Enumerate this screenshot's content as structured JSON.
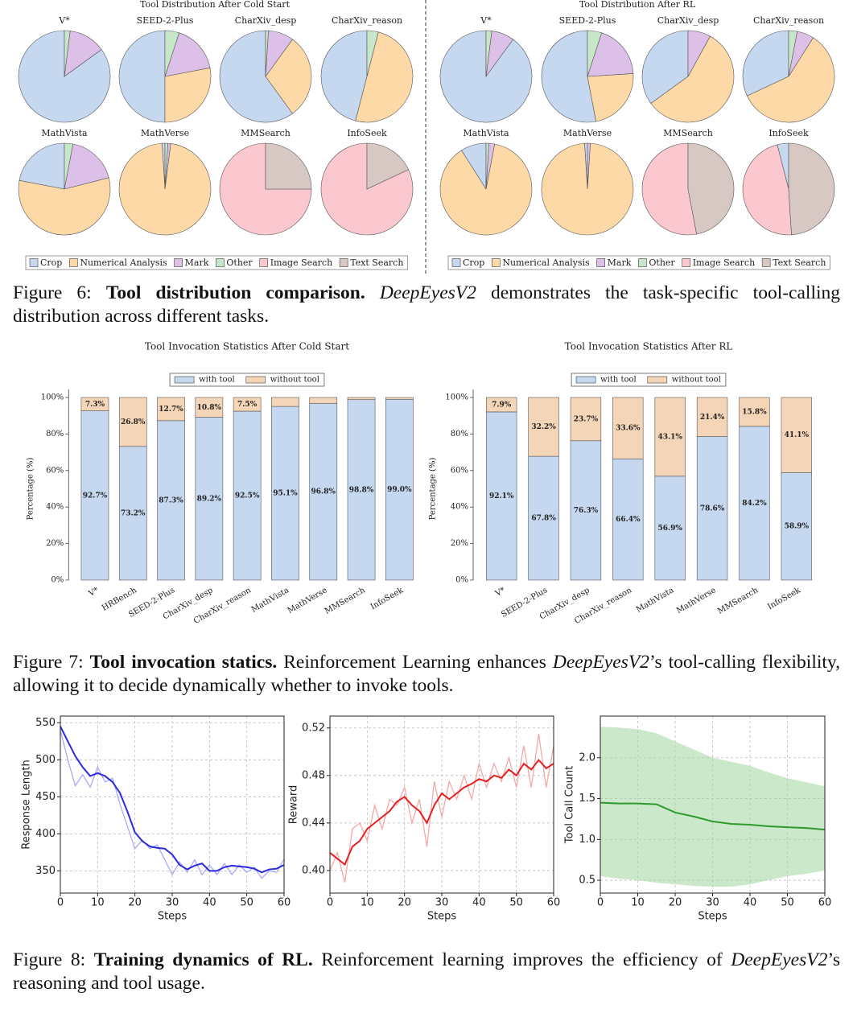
{
  "captions": [
    [
      {
        "text": "Figure 6: ",
        "style": "normal"
      },
      {
        "text": "Tool distribution comparison.",
        "style": "bold"
      },
      {
        "text": " DeepEyesV2",
        "style": "italic"
      },
      {
        "text": " demonstrates the task-specific tool-calling distribution across different tasks.",
        "style": "normal"
      }
    ],
    [
      {
        "text": "Figure 7: ",
        "style": "normal"
      },
      {
        "text": "Tool invocation statics.",
        "style": "bold"
      },
      {
        "text": " Reinforcement Learning enhances ",
        "style": "normal"
      },
      {
        "text": "DeepEyesV2",
        "style": "italic"
      },
      {
        "text": "’s tool-calling flexibility, allowing it to decide dynamically whether to invoke tools.",
        "style": "normal"
      }
    ],
    [
      {
        "text": "Figure 8: ",
        "style": "normal"
      },
      {
        "text": "Training dynamics of RL.",
        "style": "bold"
      },
      {
        "text": " Reinforcement learning improves the efficiency of ",
        "style": "normal"
      },
      {
        "text": "DeepEyesV2",
        "style": "italic"
      },
      {
        "text": "’s reasoning and tool usage.",
        "style": "normal"
      }
    ]
  ],
  "chart_data": [
    {
      "type": "pie_grid",
      "title": "Tool Distribution After Cold Start",
      "legend": [
        "Crop",
        "Numerical Analysis",
        "Mark",
        "Other",
        "Image Search",
        "Text Search"
      ],
      "colors": [
        "#c5d8f0",
        "#fdd9a8",
        "#dcc0e8",
        "#c8e6c9",
        "#fbc8d0",
        "#d8c8c4"
      ],
      "subplots": [
        {
          "title": "V*",
          "values": [
            85,
            0,
            13,
            2,
            0,
            0
          ]
        },
        {
          "title": "SEED-2-Plus",
          "values": [
            50,
            28,
            17,
            5,
            0,
            0
          ]
        },
        {
          "title": "CharXiv_desp",
          "values": [
            60,
            30,
            9,
            1,
            0,
            0
          ]
        },
        {
          "title": "CharXiv_reason",
          "values": [
            46,
            50,
            0,
            4,
            0,
            0
          ]
        },
        {
          "title": "MathVista",
          "values": [
            22,
            57,
            18,
            3,
            0,
            0
          ]
        },
        {
          "title": "MathVerse",
          "values": [
            1,
            97,
            1,
            1,
            0,
            0
          ]
        },
        {
          "title": "MMSearch",
          "values": [
            0,
            0,
            0,
            0,
            75,
            25
          ]
        },
        {
          "title": "InfoSeek",
          "values": [
            0,
            0,
            0,
            0,
            82,
            18
          ]
        }
      ]
    },
    {
      "type": "pie_grid",
      "title": "Tool Distribution After RL",
      "legend": [
        "Crop",
        "Numerical Analysis",
        "Mark",
        "Other",
        "Image Search",
        "Text Search"
      ],
      "colors": [
        "#c5d8f0",
        "#fdd9a8",
        "#dcc0e8",
        "#c8e6c9",
        "#fbc8d0",
        "#d8c8c4"
      ],
      "subplots": [
        {
          "title": "V*",
          "values": [
            90,
            0,
            8,
            2,
            0,
            0
          ]
        },
        {
          "title": "SEED-2-Plus",
          "values": [
            53,
            23,
            19,
            5,
            0,
            0
          ]
        },
        {
          "title": "CharXiv_desp",
          "values": [
            35,
            57,
            8,
            0,
            0,
            0
          ]
        },
        {
          "title": "CharXiv_reason",
          "values": [
            32,
            59,
            6,
            3,
            0,
            0
          ]
        },
        {
          "title": "MathVista",
          "values": [
            9,
            88,
            2,
            1,
            0,
            0
          ]
        },
        {
          "title": "MathVerse",
          "values": [
            1,
            98,
            1,
            0,
            0,
            0
          ]
        },
        {
          "title": "MMSearch",
          "values": [
            0,
            0,
            0,
            0,
            53,
            47
          ]
        },
        {
          "title": "InfoSeek",
          "values": [
            4,
            0,
            0,
            0,
            47,
            49
          ]
        }
      ]
    },
    {
      "type": "stacked_bar",
      "title": "Tool Invocation Statistics After Cold Start",
      "ylabel": "Percentage (%)",
      "categories": [
        "V*",
        "HRBench",
        "SEED-2-Plus",
        "CharXiv_desp",
        "CharXiv_reason",
        "MathVista",
        "MathVerse",
        "MMSearch",
        "InfoSeek"
      ],
      "series": [
        {
          "name": "with tool",
          "color": "#c5d8f0",
          "values": [
            92.7,
            73.2,
            87.3,
            89.2,
            92.5,
            95.1,
            96.8,
            98.8,
            99.0
          ],
          "value_labels": [
            "92.7%",
            "73.2%",
            "87.3%",
            "89.2%",
            "92.5%",
            "95.1%",
            "96.8%",
            "98.8%",
            "99.0%"
          ]
        },
        {
          "name": "without tool",
          "color": "#f5d5b8",
          "values": [
            7.3,
            26.8,
            12.7,
            10.8,
            7.5,
            4.9,
            3.2,
            1.2,
            1.0
          ],
          "value_labels": [
            "7.3%",
            "26.8%",
            "12.7%",
            "10.8%",
            "7.5%",
            null,
            null,
            null,
            null
          ]
        }
      ],
      "ylim": [
        0,
        100
      ],
      "yticks": [
        {
          "value": 0,
          "label": "0%"
        },
        {
          "value": 20,
          "label": "20%"
        },
        {
          "value": 40,
          "label": "40%"
        },
        {
          "value": 60,
          "label": "60%"
        },
        {
          "value": 80,
          "label": "80%"
        },
        {
          "value": 100,
          "label": "100%"
        }
      ],
      "legend_position": "upper center"
    },
    {
      "type": "stacked_bar",
      "title": "Tool Invocation Statistics After RL",
      "ylabel": "Percentage (%)",
      "categories": [
        "V*",
        "SEED-2-Plus",
        "CharXiv_desp",
        "CharXiv_reason",
        "MathVista",
        "MathVerse",
        "MMSearch",
        "InfoSeek"
      ],
      "series": [
        {
          "name": "with tool",
          "color": "#c5d8f0",
          "values": [
            92.1,
            67.8,
            76.3,
            66.4,
            56.9,
            78.6,
            84.2,
            58.9
          ],
          "value_labels": [
            "92.1%",
            "67.8%",
            "76.3%",
            "66.4%",
            "56.9%",
            "78.6%",
            "84.2%",
            "58.9%"
          ]
        },
        {
          "name": "without tool",
          "color": "#f5d5b8",
          "values": [
            7.9,
            32.2,
            23.7,
            33.6,
            43.1,
            21.4,
            15.8,
            41.1
          ],
          "value_labels": [
            "7.9%",
            "32.2%",
            "23.7%",
            "33.6%",
            "43.1%",
            "21.4%",
            "15.8%",
            "41.1%"
          ]
        }
      ],
      "ylim": [
        0,
        100
      ],
      "yticks": [
        {
          "value": 0,
          "label": "0%"
        },
        {
          "value": 20,
          "label": "20%"
        },
        {
          "value": 40,
          "label": "40%"
        },
        {
          "value": 60,
          "label": "60%"
        },
        {
          "value": 80,
          "label": "80%"
        },
        {
          "value": 100,
          "label": "100%"
        }
      ],
      "legend_position": "upper center"
    },
    {
      "type": "line",
      "xlabel": "Steps",
      "ylabel": "Response Length",
      "x": [
        0,
        2,
        4,
        6,
        8,
        10,
        12,
        14,
        16,
        18,
        20,
        22,
        24,
        26,
        28,
        30,
        32,
        34,
        36,
        38,
        40,
        42,
        44,
        46,
        48,
        50,
        52,
        54,
        56,
        58,
        60
      ],
      "series": [
        {
          "color": "#aaaaf2",
          "values": [
            540,
            500,
            465,
            480,
            463,
            490,
            470,
            475,
            440,
            410,
            380,
            392,
            380,
            385,
            365,
            345,
            362,
            348,
            365,
            345,
            358,
            345,
            360,
            345,
            358,
            348,
            355,
            340,
            350,
            348,
            366
          ]
        },
        {
          "color": "#2b2be0",
          "values": [
            545,
            525,
            505,
            490,
            478,
            482,
            478,
            470,
            455,
            430,
            402,
            390,
            383,
            381,
            380,
            372,
            358,
            352,
            357,
            360,
            350,
            350,
            355,
            357,
            356,
            355,
            353,
            348,
            352,
            353,
            358
          ]
        }
      ],
      "xlim": [
        0,
        60
      ],
      "ylim": [
        320,
        559
      ],
      "xticks": [
        0,
        10,
        20,
        30,
        40,
        50,
        60
      ],
      "yticks": [
        350,
        400,
        450,
        500,
        550
      ],
      "grid": true
    },
    {
      "type": "line",
      "xlabel": "Steps",
      "ylabel": "Reward",
      "x": [
        0,
        2,
        4,
        6,
        8,
        10,
        12,
        14,
        16,
        18,
        20,
        22,
        24,
        26,
        28,
        30,
        32,
        34,
        36,
        38,
        40,
        42,
        44,
        46,
        48,
        50,
        52,
        54,
        56,
        58,
        60
      ],
      "series": [
        {
          "color": "#f5a8a8",
          "values": [
            0.4,
            0.415,
            0.39,
            0.435,
            0.44,
            0.425,
            0.455,
            0.435,
            0.46,
            0.455,
            0.47,
            0.44,
            0.46,
            0.42,
            0.475,
            0.445,
            0.475,
            0.46,
            0.48,
            0.46,
            0.49,
            0.47,
            0.49,
            0.475,
            0.495,
            0.47,
            0.505,
            0.47,
            0.515,
            0.47,
            0.505
          ]
        },
        {
          "color": "#e62020",
          "values": [
            0.415,
            0.41,
            0.405,
            0.42,
            0.425,
            0.435,
            0.44,
            0.445,
            0.45,
            0.458,
            0.462,
            0.455,
            0.45,
            0.44,
            0.455,
            0.465,
            0.46,
            0.465,
            0.47,
            0.473,
            0.477,
            0.475,
            0.48,
            0.478,
            0.485,
            0.48,
            0.49,
            0.485,
            0.493,
            0.486,
            0.49
          ]
        }
      ],
      "xlim": [
        0,
        60
      ],
      "ylim": [
        0.381,
        0.53
      ],
      "xticks": [
        0,
        10,
        20,
        30,
        40,
        50,
        60
      ],
      "yticks": [
        {
          "value": 0.4,
          "label": "0.40"
        },
        {
          "value": 0.44,
          "label": "0.44"
        },
        {
          "value": 0.48,
          "label": "0.48"
        },
        {
          "value": 0.52,
          "label": "0.52"
        }
      ],
      "grid": true
    },
    {
      "type": "line",
      "xlabel": "Steps",
      "ylabel": "Tool Call Count",
      "x": [
        0,
        5,
        10,
        15,
        20,
        25,
        30,
        35,
        40,
        45,
        50,
        55,
        60
      ],
      "series": [
        {
          "color": "#2e9a2e",
          "band_color": "#a8d8a8",
          "values": [
            1.45,
            1.44,
            1.44,
            1.43,
            1.33,
            1.28,
            1.22,
            1.19,
            1.18,
            1.16,
            1.15,
            1.14,
            1.12
          ],
          "upper": [
            2.38,
            2.37,
            2.35,
            2.3,
            2.2,
            2.1,
            2.0,
            1.95,
            1.9,
            1.82,
            1.75,
            1.7,
            1.65
          ],
          "lower": [
            0.55,
            0.52,
            0.5,
            0.47,
            0.45,
            0.43,
            0.42,
            0.42,
            0.45,
            0.5,
            0.55,
            0.58,
            0.62
          ]
        }
      ],
      "xlim": [
        0,
        60
      ],
      "ylim": [
        0.343,
        2.51
      ],
      "xticks": [
        0,
        10,
        20,
        30,
        40,
        50,
        60
      ],
      "yticks": [
        0.5,
        {
          "value": 1,
          "label": "1.0"
        },
        1.5,
        {
          "value": 2,
          "label": "2.0"
        }
      ],
      "grid": true
    }
  ]
}
